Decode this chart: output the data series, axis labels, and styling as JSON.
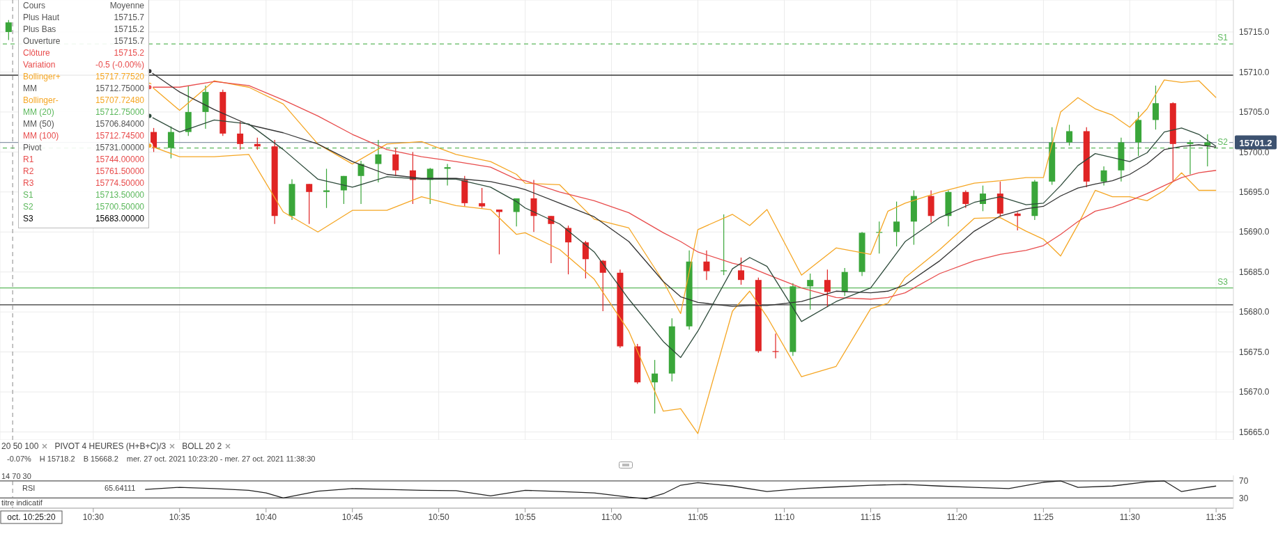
{
  "chart_data": [
    {
      "type": "candlestick",
      "xlim": [
        10.41,
        11.6
      ],
      "ylim": [
        15664,
        15719
      ],
      "xticks": [
        {
          "value": 10.5,
          "label": null
        },
        {
          "value": 10.5833,
          "label": null
        },
        {
          "value": 10.6667,
          "label": null
        },
        {
          "value": 10.75,
          "label": null
        },
        {
          "value": 10.8333,
          "label": null
        },
        {
          "value": 10.9167,
          "label": null
        },
        {
          "value": 11.0,
          "label": null
        },
        {
          "value": 11.0833,
          "label": null
        },
        {
          "value": 11.1667,
          "label": null
        },
        {
          "value": 11.25,
          "label": null
        },
        {
          "value": 11.3333,
          "label": null
        },
        {
          "value": 11.4167,
          "label": null
        },
        {
          "value": 11.5,
          "label": null
        },
        {
          "value": 11.5833,
          "label": null
        }
      ],
      "yticks": [
        {
          "value": 15665,
          "label": "15665.0"
        },
        {
          "value": 15670,
          "label": "15670.0"
        },
        {
          "value": 15675,
          "label": "15675.0"
        },
        {
          "value": 15680,
          "label": "15680.0"
        },
        {
          "value": 15685,
          "label": "15685.0"
        },
        {
          "value": 15690,
          "label": "15690.0"
        },
        {
          "value": 15695,
          "label": "15695.0"
        },
        {
          "value": 15700,
          "label": "15700.0"
        },
        {
          "value": 15705,
          "label": "15705.0"
        },
        {
          "value": 15710,
          "label": "15710.0"
        },
        {
          "value": 15715,
          "label": "15715.0"
        }
      ],
      "tick_labels": "y",
      "grid": true,
      "series": [
        {
          "type": "line",
          "color": "#f5a623",
          "x": [
            10.5542,
            10.5833,
            10.6167,
            10.65,
            10.6833,
            10.7167,
            10.75,
            10.7833,
            10.8167,
            10.85,
            10.8833,
            10.9083,
            10.9167,
            10.95,
            10.9833,
            11.0167,
            11.05,
            11.0667,
            11.0833,
            11.1167,
            11.1333,
            11.15,
            11.1833,
            11.2167,
            11.25,
            11.2667,
            11.2833,
            11.3167,
            11.35,
            11.375,
            11.4,
            11.4167,
            11.4333,
            11.45,
            11.4667,
            11.4833,
            11.5,
            11.5167,
            11.5333,
            11.55,
            11.5667,
            11.5833
          ],
          "values": [
            15700.8,
            15699.4,
            15699.4,
            15699.7,
            15692.5,
            15690,
            15692.7,
            15692.7,
            15694.4,
            15693.3,
            15692.8,
            15689.7,
            15689.9,
            15687.8,
            15684.1,
            15677.6,
            15667.6,
            15667.9,
            15664.8,
            15680.1,
            15682.6,
            15679.4,
            15671.9,
            15673.2,
            15680.4,
            15681.1,
            15684.3,
            15687.8,
            15691.7,
            15691.8,
            15690.1,
            15689.1,
            15687,
            15690.9,
            15695.2,
            15694.4,
            15694.4,
            15693.9,
            15695.2,
            15697.4,
            15695.2,
            15695.2
          ]
        },
        {
          "type": "line",
          "color": "#f5a623",
          "x": [
            10.5542,
            10.5833,
            10.6167,
            10.65,
            10.6833,
            10.7167,
            10.75,
            10.7833,
            10.8167,
            10.85,
            10.8833,
            10.9083,
            10.9167,
            10.95,
            10.9833,
            11.0167,
            11.05,
            11.0667,
            11.0833,
            11.1167,
            11.1333,
            11.15,
            11.1833,
            11.2167,
            11.25,
            11.2667,
            11.2833,
            11.3167,
            11.35,
            11.375,
            11.4,
            11.4167,
            11.4333,
            11.45,
            11.4667,
            11.4833,
            11.5,
            11.5167,
            11.5333,
            11.55,
            11.5667,
            11.5833
          ],
          "values": [
            15708.4,
            15705.2,
            15708.9,
            15708.1,
            15706,
            15701,
            15698.5,
            15701,
            15701.3,
            15699.7,
            15698.8,
            15697.2,
            15696.1,
            15695.9,
            15691.6,
            15690.5,
            15683.8,
            15679.8,
            15690.3,
            15692.2,
            15690.8,
            15692.8,
            15684.6,
            15688,
            15687.2,
            15692.6,
            15693.6,
            15695,
            15696.1,
            15696.4,
            15696.8,
            15696.8,
            15705,
            15706.8,
            15705.4,
            15704.6,
            15703.1,
            15705.4,
            15709,
            15708.7,
            15708.9,
            15706.8
          ]
        },
        {
          "type": "line",
          "color": "#e84c4c",
          "x": [
            10.5542,
            10.5833,
            10.6167,
            10.65,
            10.6833,
            10.7167,
            10.75,
            10.7833,
            10.8167,
            10.85,
            10.8833,
            10.9083,
            10.9167,
            10.95,
            10.9833,
            11.0167,
            11.05,
            11.0667,
            11.0833,
            11.1167,
            11.1333,
            11.15,
            11.1833,
            11.2167,
            11.25,
            11.2667,
            11.2833,
            11.3167,
            11.35,
            11.375,
            11.4,
            11.4167,
            11.4333,
            11.45,
            11.4667,
            11.4833,
            11.5,
            11.5167,
            11.5333,
            11.55,
            11.5667,
            11.5833
          ],
          "values": [
            15708.1,
            15708.1,
            15708.8,
            15708.3,
            15706.5,
            15704.5,
            15702.2,
            15700.3,
            15699.4,
            15698.8,
            15698.1,
            15696.6,
            15696.4,
            15695,
            15693.9,
            15692.4,
            15689.9,
            15688.8,
            15687.5,
            15686.1,
            15685.6,
            15684.7,
            15683,
            15681.8,
            15681.6,
            15681.8,
            15682.4,
            15684.8,
            15686.4,
            15687.2,
            15687.7,
            15688.3,
            15689.7,
            15691.3,
            15692.6,
            15693.1,
            15693.9,
            15694.8,
            15695.8,
            15696.8,
            15697.4,
            15697.7
          ]
        },
        {
          "type": "line",
          "color": "#333333",
          "x": [
            10.5542,
            10.5833,
            10.6167,
            10.65,
            10.6833,
            10.7167,
            10.75,
            10.7833,
            10.8167,
            10.85,
            10.8833,
            10.9083,
            10.9167,
            10.95,
            10.9833,
            11.0167,
            11.05,
            11.0667,
            11.0833,
            11.1167,
            11.1333,
            11.15,
            11.1833,
            11.2167,
            11.25,
            11.2667,
            11.2833,
            11.3167,
            11.35,
            11.375,
            11.4,
            11.4167,
            11.4333,
            11.45,
            11.4667,
            11.4833,
            11.5,
            11.5167,
            11.5333,
            11.55,
            11.5667,
            11.5833
          ],
          "values": [
            15710.1,
            15707.5,
            15705.3,
            15703.4,
            15702.4,
            15701,
            15698.8,
            15697.2,
            15696.7,
            15696.7,
            15696.3,
            15695.6,
            15695.3,
            15693.6,
            15691.9,
            15688.8,
            15683.8,
            15681.9,
            15681.2,
            15680.7,
            15680.8,
            15680.8,
            15681.3,
            15682.6,
            15682.4,
            15682.6,
            15683.4,
            15686.4,
            15690.1,
            15692,
            15692.9,
            15693.2,
            15694.5,
            15695.5,
            15696,
            15696.4,
            15697.2,
            15698.5,
            15700.3,
            15700.7,
            15700.9,
            15700.6
          ]
        },
        {
          "type": "line",
          "color": "#2d4a3a",
          "x": [
            10.5542,
            10.5833,
            10.6167,
            10.65,
            10.6833,
            10.7167,
            10.75,
            10.7833,
            10.8167,
            10.85,
            10.8833,
            10.9083,
            10.9167,
            10.95,
            10.9833,
            11.0167,
            11.05,
            11.0667,
            11.0833,
            11.1167,
            11.1333,
            11.15,
            11.1833,
            11.2167,
            11.25,
            11.2667,
            11.2833,
            11.3167,
            11.35,
            11.375,
            11.4,
            11.4167,
            11.4333,
            11.45,
            11.4667,
            11.4833,
            11.5,
            11.5167,
            11.5333,
            11.55,
            11.5667,
            11.5833
          ],
          "values": [
            15704.5,
            15702.5,
            15704,
            15703.5,
            15700.3,
            15696.6,
            15695.6,
            15696.9,
            15696.6,
            15696.6,
            15695.6,
            15693.8,
            15693,
            15691,
            15687.5,
            15681.6,
            15676.3,
            15674.3,
            15677.6,
            15685.4,
            15686.8,
            15685.7,
            15678.8,
            15681.3,
            15683,
            15685.9,
            15688.8,
            15691.8,
            15693.7,
            15694.4,
            15693.4,
            15693.6,
            15695.8,
            15698.3,
            15699.8,
            15699.3,
            15698.8,
            15699.9,
            15702.5,
            15703,
            15702.2,
            15700.7
          ]
        },
        {
          "type": "candlestick",
          "color": "#3aa63a",
          "x": [
            10.4183,
            10.575,
            10.5917,
            10.6083,
            10.6917,
            10.725,
            10.7417,
            10.7583,
            10.775,
            10.825,
            10.8417,
            10.9083,
            11.0417,
            11.0583,
            11.075,
            11.1083,
            11.175,
            11.1917,
            11.225,
            11.2417,
            11.2583,
            11.275,
            11.2917,
            11.325,
            11.3583,
            11.4083,
            11.425,
            11.4417,
            11.475,
            11.4917,
            11.5083,
            11.525,
            11.5583,
            11.575
          ],
          "ohlc": [
            [
              15715,
              15716.5,
              15714,
              15716.2
            ],
            [
              15700.5,
              15703.2,
              15699.2,
              15702.5
            ],
            [
              15702.5,
              15708.3,
              15702,
              15705
            ],
            [
              15705,
              15708.3,
              15702.9,
              15707.5
            ],
            [
              15692,
              15696.6,
              15691.5,
              15696
            ],
            [
              15695,
              15697.9,
              15693,
              15695.2
            ],
            [
              15695.2,
              15697,
              15693.5,
              15697
            ],
            [
              15697,
              15698.9,
              15693.5,
              15698.5
            ],
            [
              15698.5,
              15701.5,
              15696.2,
              15699.7
            ],
            [
              15696.5,
              15698,
              15693.5,
              15697.9
            ],
            [
              15697.9,
              15698.5,
              15695.8,
              15698.1
            ],
            [
              15692.5,
              15694.2,
              15690.7,
              15694.2
            ],
            [
              15671.2,
              15674,
              15667.3,
              15672.3
            ],
            [
              15672.3,
              15679.2,
              15671.3,
              15678.2
            ],
            [
              15678.2,
              15687.7,
              15677.8,
              15686.3
            ],
            [
              15685.1,
              15692.2,
              15684.6,
              15685.2
            ],
            [
              15675,
              15683.6,
              15674.5,
              15683.2
            ],
            [
              15683.2,
              15684.8,
              15680.3,
              15684
            ],
            [
              15682.5,
              15685.5,
              15682,
              15685
            ],
            [
              15685,
              15690,
              15684.5,
              15689.9
            ],
            [
              15689.9,
              15691.3,
              15687.3,
              15690
            ],
            [
              15690,
              15693.8,
              15688.2,
              15691.3
            ],
            [
              15691.3,
              15695.2,
              15688.4,
              15694.5
            ],
            [
              15692,
              15695.2,
              15690.7,
              15695
            ],
            [
              15693.5,
              15695.8,
              15692.6,
              15694.8
            ],
            [
              15692,
              15696.5,
              15691.5,
              15696.3
            ],
            [
              15696.3,
              15703.1,
              15695.9,
              15701.2
            ],
            [
              15701.2,
              15703.4,
              15700.8,
              15702.6
            ],
            [
              15696.3,
              15698.2,
              15695.8,
              15697.7
            ],
            [
              15697.7,
              15701.8,
              15696.3,
              15701.2
            ],
            [
              15701.2,
              15705,
              15699.5,
              15704
            ],
            [
              15704,
              15708.3,
              15702.8,
              15706.1
            ],
            [
              15701,
              15701.5,
              15697.2,
              15701.2
            ],
            [
              15700.8,
              15702.2,
              15698.2,
              15701.2
            ]
          ]
        },
        {
          "type": "candlestick",
          "color": "#e02424",
          "x": [
            10.5583,
            10.625,
            10.6417,
            10.6583,
            10.675,
            10.7083,
            10.7917,
            10.8083,
            10.8583,
            10.875,
            10.8917,
            10.925,
            10.9417,
            10.9583,
            10.975,
            10.9917,
            11.0083,
            11.025,
            11.0917,
            11.125,
            11.1417,
            11.1583,
            11.2083,
            11.3083,
            11.3417,
            11.375,
            11.3917,
            11.4583,
            11.5417
          ],
          "ohlc": [
            [
              15702.5,
              15703,
              15700,
              15700.5
            ],
            [
              15707.5,
              15707.8,
              15702,
              15702.3
            ],
            [
              15702.3,
              15703.8,
              15700.3,
              15701
            ],
            [
              15701,
              15701.8,
              15700.3,
              15700.7
            ],
            [
              15700.7,
              15701.5,
              15691,
              15692
            ],
            [
              15696,
              15696,
              15691,
              15695
            ],
            [
              15699.7,
              15700.5,
              15697,
              15697.7
            ],
            [
              15697.7,
              15700,
              15693.5,
              15696.5
            ],
            [
              15696.5,
              15697,
              15693.2,
              15693.6
            ],
            [
              15693.6,
              15695.5,
              15693,
              15693.2
            ],
            [
              15692.8,
              15692.8,
              15687.2,
              15692.5
            ],
            [
              15694.2,
              15696.5,
              15690,
              15692
            ],
            [
              15692,
              15692,
              15686.1,
              15691
            ],
            [
              15690.5,
              15690.8,
              15684.7,
              15688.7
            ],
            [
              15688.7,
              15688.9,
              15684.2,
              15686.6
            ],
            [
              15686.4,
              15686.5,
              15680.1,
              15684.9
            ],
            [
              15684.9,
              15685.3,
              15675.5,
              15675.7
            ],
            [
              15675.7,
              15676,
              15671,
              15671.2
            ],
            [
              15686.3,
              15687.7,
              15684,
              15685.1
            ],
            [
              15685.2,
              15686.8,
              15683.4,
              15684
            ],
            [
              15684,
              15684.3,
              15674.9,
              15675.1
            ],
            [
              15675.1,
              15677.3,
              15674.2,
              15675
            ],
            [
              15684,
              15685.3,
              15680.6,
              15682.5
            ],
            [
              15694.5,
              15695.2,
              15691.2,
              15692
            ],
            [
              15695,
              15695.2,
              15693,
              15693.5
            ],
            [
              15694.8,
              15696.3,
              15691.9,
              15692.3
            ],
            [
              15692.3,
              15692.5,
              15690.2,
              15692
            ],
            [
              15702.6,
              15703.1,
              15695.6,
              15696.3
            ],
            [
              15706.1,
              15706.2,
              15696.4,
              15701
            ]
          ]
        }
      ],
      "ref_lines": [
        {
          "axis": "y",
          "value": 15713.5,
          "label": "S1",
          "color": "#5cb85c",
          "line_style": "dashed"
        },
        {
          "axis": "y",
          "value": 15709.6,
          "color": "#333333"
        },
        {
          "axis": "y",
          "value": 15701.2,
          "label": "15701.2",
          "color": "#8a96a8"
        },
        {
          "axis": "y",
          "value": 15700.5,
          "label": "S2",
          "color": "#5cb85c",
          "line_style": "dashed"
        },
        {
          "axis": "y",
          "value": 15683,
          "label": "S3",
          "color": "#5cb85c"
        },
        {
          "axis": "y",
          "value": 15680.9,
          "color": "#333333"
        },
        {
          "axis": "x",
          "value": 10.4222,
          "color": "#888888",
          "line_style": "dashed"
        }
      ],
      "annotations": [
        "20 50 100",
        "PIVOT 4 HEURES (H+B+C)/3",
        "BOLL 20 2"
      ]
    },
    {
      "type": "other",
      "annotations": [
        "Cours",
        "Moyenne",
        "Plus Haut",
        "15715.7",
        "Plus Bas",
        "15715.2",
        "Ouverture",
        "15715.7",
        "Clôture",
        "15715.2",
        "Variation",
        "-0.5 (-0.00%)",
        "Bollinger+",
        "15717.77520",
        "MM",
        "15712.75000",
        "Bollinger-",
        "15707.72480",
        "MM (20)",
        "15712.75000",
        "MM (50)",
        "15706.84000",
        "MM (100)",
        "15712.74500",
        "Pivot",
        "15731.00000",
        "R1",
        "15744.00000",
        "R2",
        "15761.50000",
        "R3",
        "15774.50000",
        "S1",
        "15713.50000",
        "S2",
        "15700.50000",
        "S3",
        "15683.00000"
      ],
      "colors": [
        "#555555",
        "#555555",
        "#555555",
        "#555555",
        "#e84c4c",
        "#e84c4c",
        "#f5a623",
        "#555555",
        "#f5a623",
        "#5cb85c",
        "#555555",
        "#e84c4c",
        "#555555",
        "#e84c4c",
        "#e84c4c",
        "#e84c4c",
        "#5cb85c",
        "#5cb85c"
      ]
    },
    {
      "type": "line",
      "color": "#222222",
      "xlim": [
        10.41,
        11.6
      ],
      "ylim": [
        6,
        83
      ],
      "xticks": [
        {
          "value": 10.5,
          "label": "10:30"
        },
        {
          "value": 10.5833,
          "label": "10:35"
        },
        {
          "value": 10.6667,
          "label": "10:40"
        },
        {
          "value": 10.75,
          "label": "10:45"
        },
        {
          "value": 10.8333,
          "label": "10:50"
        },
        {
          "value": 10.9167,
          "label": "10:55"
        },
        {
          "value": 11.0,
          "label": "11:00"
        },
        {
          "value": 11.0833,
          "label": "11:05"
        },
        {
          "value": 11.1667,
          "label": "11:10"
        },
        {
          "value": 11.25,
          "label": "11:15"
        },
        {
          "value": 11.3333,
          "label": "11:20"
        },
        {
          "value": 11.4167,
          "label": "11:25"
        },
        {
          "value": 11.5,
          "label": "11:30"
        },
        {
          "value": 11.5833,
          "label": "11:35"
        }
      ],
      "yticks": [
        70,
        30
      ],
      "x": [
        10.55,
        10.5833,
        10.6167,
        10.65,
        10.6667,
        10.6833,
        10.7167,
        10.75,
        10.7833,
        10.8167,
        10.85,
        10.8833,
        10.9167,
        10.95,
        10.9833,
        11.0167,
        11.0333,
        11.05,
        11.0667,
        11.0833,
        11.1167,
        11.15,
        11.1833,
        11.2167,
        11.25,
        11.2833,
        11.3167,
        11.35,
        11.3833,
        11.4167,
        11.4333,
        11.45,
        11.4833,
        11.5167,
        11.5333,
        11.55,
        11.5667,
        11.5833
      ],
      "values": [
        50,
        55,
        52,
        48,
        42,
        30,
        46,
        52,
        50,
        48,
        47,
        35,
        48,
        45,
        42,
        32,
        28,
        40,
        60,
        66,
        58,
        45,
        52,
        56,
        60,
        62,
        58,
        55,
        52,
        67,
        70,
        55,
        58,
        68,
        70,
        45,
        52,
        58
      ],
      "ref_lines": [
        {
          "axis": "y",
          "value": 70,
          "color": "#555555"
        },
        {
          "axis": "y",
          "value": 30,
          "color": "#555555"
        },
        {
          "axis": "x",
          "value": 10.4222,
          "label": "oct. 10:25:20",
          "color": "#888888",
          "line_style": "dashed"
        }
      ],
      "annotations": [
        "-0.07%",
        "H 15718.2",
        "B 15668.2",
        "mer. 27 oct. 2021 10:23:20 - mer. 27 oct. 2021 11:38:30",
        "14 70 30",
        "RSI",
        "65.64111",
        "titre indicatif"
      ]
    }
  ]
}
